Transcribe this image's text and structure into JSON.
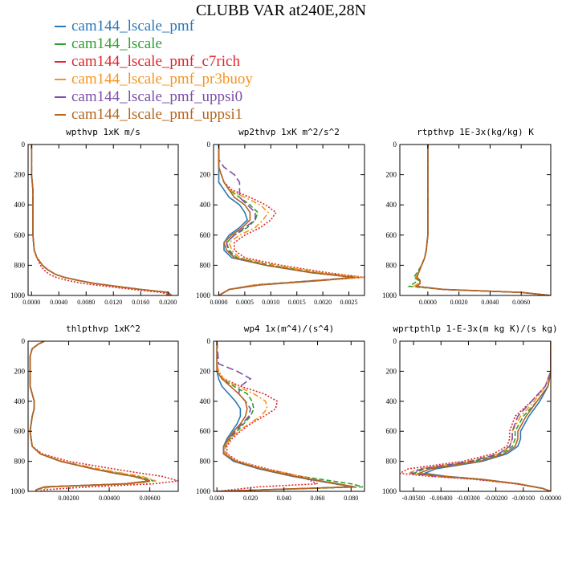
{
  "title": "CLUBB VAR at240E,28N",
  "series": [
    {
      "name": "cam144_lscale_pmf",
      "color": "#2a78b8",
      "dash": "solid"
    },
    {
      "name": "cam144_lscale",
      "color": "#2fa02f",
      "dash": "dash"
    },
    {
      "name": "cam144_lscale_pmf_c7rich",
      "color": "#e0242a",
      "dash": "dot"
    },
    {
      "name": "cam144_lscale_pmf_pr3buoy",
      "color": "#f7941d",
      "dash": "dashdot"
    },
    {
      "name": "cam144_lscale_pmf_uppsi0",
      "color": "#7b4fa8",
      "dash": "longdash"
    },
    {
      "name": "cam144_lscale_pmf_uppsi1",
      "color": "#b5651d",
      "dash": "solid"
    }
  ],
  "chart_data": [
    {
      "type": "line",
      "title": "wpthvp  1xK m/s",
      "xlim": [
        -0.0005,
        0.0215
      ],
      "ylim": [
        0,
        1000
      ],
      "xticks": [
        "0.0000",
        "0.0040",
        "0.0080",
        "0.0120",
        "0.0160",
        "0.0200"
      ],
      "xtick_values": [
        0,
        0.004,
        0.008,
        0.012,
        0.016,
        0.02
      ],
      "yticks": [
        "0",
        "200",
        "400",
        "600",
        "800",
        "1000"
      ],
      "y": [
        0,
        100,
        200,
        300,
        400,
        500,
        600,
        700,
        750,
        800,
        830,
        860,
        880,
        900,
        920,
        940,
        960,
        980,
        1000
      ],
      "series": [
        [
          0,
          0,
          0,
          0.0002,
          0.0002,
          0.0002,
          0.0002,
          0.0004,
          0.0008,
          0.0016,
          0.0024,
          0.0035,
          0.0048,
          0.0068,
          0.0092,
          0.0125,
          0.016,
          0.02,
          0.0205
        ],
        [
          0,
          0,
          0,
          0.0002,
          0.0002,
          0.0002,
          0.0002,
          0.0004,
          0.0008,
          0.0016,
          0.0024,
          0.0035,
          0.0048,
          0.0068,
          0.0092,
          0.0125,
          0.016,
          0.02,
          0.0205
        ],
        [
          0,
          0,
          0,
          0.0002,
          0.0002,
          0.0002,
          0.0002,
          0.0004,
          0.0008,
          0.0013,
          0.0018,
          0.0026,
          0.0036,
          0.0052,
          0.0075,
          0.011,
          0.0148,
          0.019,
          0.0205
        ],
        [
          0,
          0,
          0,
          0.0002,
          0.0002,
          0.0002,
          0.0002,
          0.0004,
          0.0008,
          0.0016,
          0.0024,
          0.0035,
          0.0048,
          0.0068,
          0.0092,
          0.0125,
          0.016,
          0.02,
          0.0205
        ],
        [
          0,
          0,
          0,
          0.0002,
          0.0002,
          0.0002,
          0.0002,
          0.0004,
          0.0008,
          0.0016,
          0.0024,
          0.0035,
          0.0048,
          0.0068,
          0.0092,
          0.0125,
          0.016,
          0.02,
          0.0205
        ],
        [
          0,
          0,
          0,
          0.0002,
          0.0002,
          0.0002,
          0.0002,
          0.0004,
          0.0008,
          0.0016,
          0.0024,
          0.0035,
          0.0048,
          0.0068,
          0.0092,
          0.0125,
          0.016,
          0.02,
          0.0205
        ]
      ]
    },
    {
      "type": "line",
      "title": "wp2thvp   1xK m^2/s^2",
      "xlim": [
        -0.0001,
        0.0028
      ],
      "ylim": [
        0,
        1000
      ],
      "xticks": [
        "0.0000",
        "0.0005",
        "0.0010",
        "0.0015",
        "0.0020",
        "0.0025"
      ],
      "xtick_values": [
        0,
        0.0005,
        0.001,
        0.0015,
        0.002,
        0.0025
      ],
      "yticks": [
        "0",
        "200",
        "400",
        "600",
        "800",
        "1000"
      ],
      "y": [
        0,
        100,
        150,
        200,
        250,
        300,
        350,
        400,
        450,
        500,
        550,
        600,
        650,
        700,
        750,
        800,
        850,
        880,
        900,
        930,
        960,
        1000
      ],
      "series": [
        [
          0,
          0,
          0,
          0,
          0,
          0.0001,
          0.0002,
          0.0004,
          0.0005,
          0.00055,
          0.0004,
          0.0002,
          0.0001,
          0.0001,
          0.00025,
          0.0009,
          0.0018,
          0.0026,
          0.002,
          0.0008,
          0.0002,
          0
        ],
        [
          0,
          0,
          0,
          5e-05,
          0.0001,
          0.0002,
          0.0004,
          0.0006,
          0.00075,
          0.0007,
          0.00055,
          0.0003,
          0.00015,
          0.0002,
          0.00035,
          0.001,
          0.0019,
          0.0027,
          0.0019,
          0.0007,
          0.0002,
          0
        ],
        [
          0,
          0,
          0,
          5e-05,
          0.0001,
          0.00025,
          0.0006,
          0.0009,
          0.0011,
          0.001,
          0.0008,
          0.0005,
          0.0003,
          0.0003,
          0.0005,
          0.0012,
          0.0021,
          0.0028,
          0.002,
          0.0007,
          0.0002,
          0
        ],
        [
          0,
          0,
          0,
          5e-05,
          0.0001,
          0.0002,
          0.0005,
          0.0008,
          0.00095,
          0.00085,
          0.0007,
          0.0004,
          0.0002,
          0.00025,
          0.0004,
          0.0011,
          0.002,
          0.0028,
          0.0019,
          0.0007,
          0.0002,
          0
        ],
        [
          0,
          0,
          0.0001,
          0.0003,
          0.0004,
          0.0004,
          0.0004,
          0.00055,
          0.0007,
          0.0007,
          0.0005,
          0.0003,
          0.00015,
          0.00018,
          0.0003,
          0.0009,
          0.0018,
          0.0026,
          0.0019,
          0.0008,
          0.0002,
          0
        ],
        [
          0,
          0,
          0,
          5e-05,
          0.0001,
          0.0002,
          0.0003,
          0.0005,
          0.0006,
          0.0006,
          0.00045,
          0.00025,
          0.0001,
          0.00015,
          0.0003,
          0.0009,
          0.0018,
          0.0026,
          0.002,
          0.0008,
          0.0002,
          0
        ]
      ]
    },
    {
      "type": "line",
      "title": "rtpthvp   1E-3x(kg/kg) K",
      "xlim": [
        -0.0018,
        0.0079
      ],
      "ylim": [
        0,
        1000
      ],
      "xticks": [
        "0.0000",
        "0.0020",
        "0.0040",
        "0.0060"
      ],
      "xtick_values": [
        0,
        0.002,
        0.004,
        0.006
      ],
      "yticks": [
        "0",
        "200",
        "400",
        "600",
        "800",
        "1000"
      ],
      "y": [
        0,
        200,
        400,
        600,
        700,
        750,
        800,
        850,
        880,
        900,
        920,
        940,
        960,
        980,
        1000
      ],
      "series": [
        [
          0,
          0,
          0,
          0,
          -0.0001,
          -0.0002,
          -0.0004,
          -0.0006,
          -0.0007,
          -0.0005,
          -0.0005,
          -0.0007,
          0.001,
          0.006,
          0.0079
        ],
        [
          0,
          0,
          0,
          0,
          -0.0001,
          -0.0002,
          -0.0004,
          -0.0007,
          -0.0009,
          -0.0006,
          -0.0009,
          -0.0012,
          0.001,
          0.006,
          0.0079
        ],
        [
          0,
          0,
          0,
          0,
          -0.0001,
          -0.0002,
          -0.0004,
          -0.0006,
          -0.0007,
          -0.0005,
          -0.0005,
          -0.0008,
          0.001,
          0.006,
          0.0079
        ],
        [
          0,
          0,
          0,
          0,
          -0.0001,
          -0.0002,
          -0.0004,
          -0.0006,
          -0.0008,
          -0.0005,
          -0.0006,
          -0.0009,
          0.001,
          0.006,
          0.0079
        ],
        [
          0,
          0,
          0,
          0,
          -0.0001,
          -0.0002,
          -0.0004,
          -0.0006,
          -0.0007,
          -0.0005,
          -0.0005,
          -0.0007,
          0.001,
          0.006,
          0.0079
        ],
        [
          0,
          0,
          0,
          0,
          -0.0001,
          -0.0002,
          -0.0004,
          -0.0006,
          -0.0007,
          -0.0005,
          -0.0005,
          -0.0007,
          0.001,
          0.006,
          0.0079
        ]
      ]
    },
    {
      "type": "line",
      "title": "thlpthvp   1xK^2",
      "xlim": [
        0,
        0.0074
      ],
      "ylim": [
        0,
        1000
      ],
      "xticks": [
        "0.00200",
        "0.00400",
        "0.00600"
      ],
      "xtick_values": [
        0.002,
        0.004,
        0.006
      ],
      "yticks": [
        "0",
        "200",
        "400",
        "600",
        "800",
        "1000"
      ],
      "y": [
        0,
        20,
        50,
        100,
        200,
        300,
        400,
        450,
        500,
        600,
        700,
        750,
        800,
        850,
        880,
        900,
        930,
        950,
        970,
        990,
        1000
      ],
      "series": [
        [
          0.0008,
          0.0005,
          0.0002,
          0.0001,
          0.0001,
          0.0001,
          0.0003,
          0.0003,
          0.0002,
          0.0001,
          0.0002,
          0.0006,
          0.0016,
          0.0032,
          0.0043,
          0.0052,
          0.006,
          0.0048,
          0.0008,
          0.0004,
          0.0004
        ],
        [
          0.0008,
          0.0005,
          0.0002,
          0.0001,
          0.0001,
          0.0001,
          0.0003,
          0.0003,
          0.0002,
          0.0001,
          0.0002,
          0.0006,
          0.0016,
          0.0033,
          0.0045,
          0.0054,
          0.0062,
          0.005,
          0.001,
          0.0004,
          0.0004
        ],
        [
          0.0008,
          0.0005,
          0.0002,
          0.0001,
          0.0001,
          0.0001,
          0.0003,
          0.0003,
          0.0002,
          0.0001,
          0.0002,
          0.0007,
          0.002,
          0.0042,
          0.0056,
          0.0066,
          0.0074,
          0.0062,
          0.003,
          0.0008,
          0.0006
        ],
        [
          0.0008,
          0.0005,
          0.0002,
          0.0001,
          0.0001,
          0.0001,
          0.0003,
          0.0003,
          0.0002,
          0.0001,
          0.0002,
          0.0006,
          0.0017,
          0.0035,
          0.0047,
          0.0056,
          0.0063,
          0.0052,
          0.0012,
          0.0004,
          0.0004
        ],
        [
          0.0008,
          0.0005,
          0.0002,
          0.0001,
          0.0001,
          0.0001,
          0.0003,
          0.0003,
          0.0002,
          0.0001,
          0.0002,
          0.0006,
          0.0016,
          0.0032,
          0.0043,
          0.0052,
          0.006,
          0.0048,
          0.0008,
          0.0004,
          0.0004
        ],
        [
          0.0008,
          0.0005,
          0.0002,
          0.0001,
          0.0001,
          0.0001,
          0.0003,
          0.0003,
          0.0002,
          0.0001,
          0.0002,
          0.0006,
          0.0016,
          0.0032,
          0.0043,
          0.0052,
          0.006,
          0.0048,
          0.0008,
          0.0004,
          0.0004
        ]
      ]
    },
    {
      "type": "line",
      "title": "wp4   1x(m^4)/(s^4)",
      "xlim": [
        -0.002,
        0.088
      ],
      "ylim": [
        0,
        1000
      ],
      "xticks": [
        "0.000",
        "0.020",
        "0.040",
        "0.060",
        "0.080"
      ],
      "xtick_values": [
        0,
        0.02,
        0.04,
        0.06,
        0.08
      ],
      "yticks": [
        "0",
        "200",
        "400",
        "600",
        "800",
        "1000"
      ],
      "y": [
        0,
        150,
        200,
        250,
        300,
        350,
        400,
        450,
        500,
        550,
        600,
        650,
        700,
        750,
        800,
        850,
        900,
        950,
        970,
        1000
      ],
      "series": [
        [
          0,
          0,
          0,
          0.001,
          0.003,
          0.007,
          0.011,
          0.014,
          0.014,
          0.012,
          0.009,
          0.006,
          0.004,
          0.004,
          0.01,
          0.025,
          0.045,
          0.07,
          0.08,
          0
        ],
        [
          0,
          0,
          0,
          0.003,
          0.01,
          0.018,
          0.021,
          0.022,
          0.02,
          0.016,
          0.012,
          0.008,
          0.005,
          0.005,
          0.011,
          0.028,
          0.05,
          0.08,
          0.087,
          0
        ],
        [
          0,
          0,
          0.001,
          0.004,
          0.014,
          0.028,
          0.036,
          0.035,
          0.028,
          0.02,
          0.014,
          0.009,
          0.006,
          0.006,
          0.013,
          0.03,
          0.05,
          0.06,
          0.025,
          0
        ],
        [
          0,
          0,
          0.001,
          0.004,
          0.012,
          0.022,
          0.029,
          0.03,
          0.026,
          0.019,
          0.013,
          0.008,
          0.005,
          0.005,
          0.012,
          0.028,
          0.05,
          0.07,
          0.08,
          0
        ],
        [
          0,
          0.001,
          0.012,
          0.02,
          0.014,
          0.013,
          0.017,
          0.02,
          0.019,
          0.015,
          0.011,
          0.007,
          0.004,
          0.004,
          0.011,
          0.026,
          0.046,
          0.072,
          0.082,
          0
        ],
        [
          0,
          0,
          0,
          0.003,
          0.008,
          0.013,
          0.017,
          0.018,
          0.017,
          0.014,
          0.01,
          0.007,
          0.004,
          0.004,
          0.011,
          0.026,
          0.046,
          0.072,
          0.082,
          0
        ]
      ]
    },
    {
      "type": "line",
      "title": "wprtpthlp   1-E-3x(m kg K)/(s kg)",
      "xlim": [
        -0.0055,
        0
      ],
      "ylim": [
        0,
        1000
      ],
      "xticks": [
        "-0.00500",
        "-0.00400",
        "-0.00300",
        "-0.00200",
        "-0.00100",
        "0.00000"
      ],
      "xtick_values": [
        -0.005,
        -0.004,
        -0.003,
        -0.002,
        -0.001,
        0
      ],
      "yticks": [
        "0",
        "200",
        "400",
        "600",
        "800",
        "1000"
      ],
      "y": [
        0,
        100,
        200,
        300,
        400,
        500,
        600,
        650,
        700,
        750,
        800,
        850,
        880,
        900,
        920,
        950,
        980,
        1000
      ],
      "series": [
        [
          0,
          0,
          0,
          -0.0001,
          -0.0004,
          -0.0008,
          -0.0011,
          -0.0011,
          -0.0012,
          -0.0016,
          -0.0025,
          -0.0042,
          -0.0046,
          -0.0038,
          -0.0025,
          -0.0012,
          -0.0003,
          0
        ],
        [
          0,
          0,
          0,
          -0.0001,
          -0.0005,
          -0.001,
          -0.0013,
          -0.0013,
          -0.0014,
          -0.0018,
          -0.0028,
          -0.0046,
          -0.005,
          -0.004,
          -0.0026,
          -0.0012,
          -0.0003,
          0
        ],
        [
          0,
          0,
          0,
          -0.0002,
          -0.0007,
          -0.0013,
          -0.0015,
          -0.0015,
          -0.0016,
          -0.0021,
          -0.0032,
          -0.0052,
          -0.0055,
          -0.0044,
          -0.0028,
          -0.0013,
          -0.0003,
          0
        ],
        [
          0,
          0,
          0,
          -0.0002,
          -0.0006,
          -0.0011,
          -0.0014,
          -0.0014,
          -0.0015,
          -0.0019,
          -0.003,
          -0.0048,
          -0.0052,
          -0.0042,
          -0.0027,
          -0.0012,
          -0.0003,
          0
        ],
        [
          0,
          0,
          0,
          -0.0002,
          -0.0007,
          -0.0012,
          -0.0014,
          -0.0014,
          -0.0015,
          -0.0019,
          -0.0029,
          -0.0047,
          -0.0051,
          -0.0041,
          -0.0026,
          -0.0012,
          -0.0003,
          0
        ],
        [
          0,
          0,
          0,
          -0.0001,
          -0.0005,
          -0.0009,
          -0.0012,
          -0.0012,
          -0.0013,
          -0.0017,
          -0.0026,
          -0.0044,
          -0.0048,
          -0.0039,
          -0.0025,
          -0.0012,
          -0.0003,
          0
        ]
      ]
    }
  ]
}
